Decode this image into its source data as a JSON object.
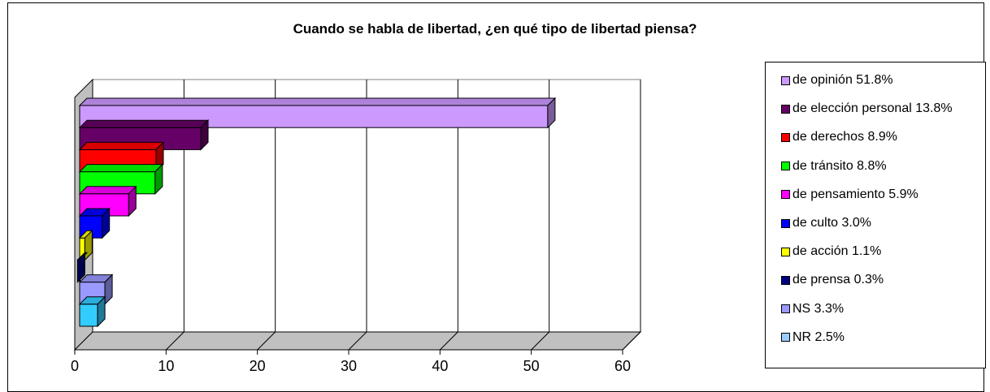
{
  "chart_data": {
    "type": "bar",
    "orientation": "horizontal",
    "three_d": true,
    "title": "Cuando se habla de libertad, ¿en qué tipo de libertad piensa?",
    "xlim": [
      0,
      60
    ],
    "xticks": [
      0,
      10,
      20,
      30,
      40,
      50,
      60
    ],
    "grid": true,
    "legend_position": "right",
    "series": [
      {
        "name": "de opinión 51.8%",
        "value": 51.8,
        "color": "#cc99ff"
      },
      {
        "name": "de elección personal 13.8%",
        "value": 13.8,
        "color": "#660066"
      },
      {
        "name": "de derechos 8.9%",
        "value": 8.9,
        "color": "#ff0000"
      },
      {
        "name": "de tránsito 8.8%",
        "value": 8.8,
        "color": "#00ff00"
      },
      {
        "name": "de pensamiento 5.9%",
        "value": 5.9,
        "color": "#ff00ff"
      },
      {
        "name": "de culto 3.0%",
        "value": 3.0,
        "color": "#0000ff"
      },
      {
        "name": "de acción 1.1%",
        "value": 1.1,
        "color": "#ffff00"
      },
      {
        "name": "de prensa 0.3%",
        "value": 0.3,
        "color": "#000080"
      },
      {
        "name": "NS 3.3%",
        "value": 3.3,
        "color": "#9999ff"
      },
      {
        "name": "NR 2.5%",
        "value": 2.5,
        "color": "#33ccff"
      }
    ]
  },
  "colors": {
    "legend_nr_swatch": "#99ccff"
  }
}
